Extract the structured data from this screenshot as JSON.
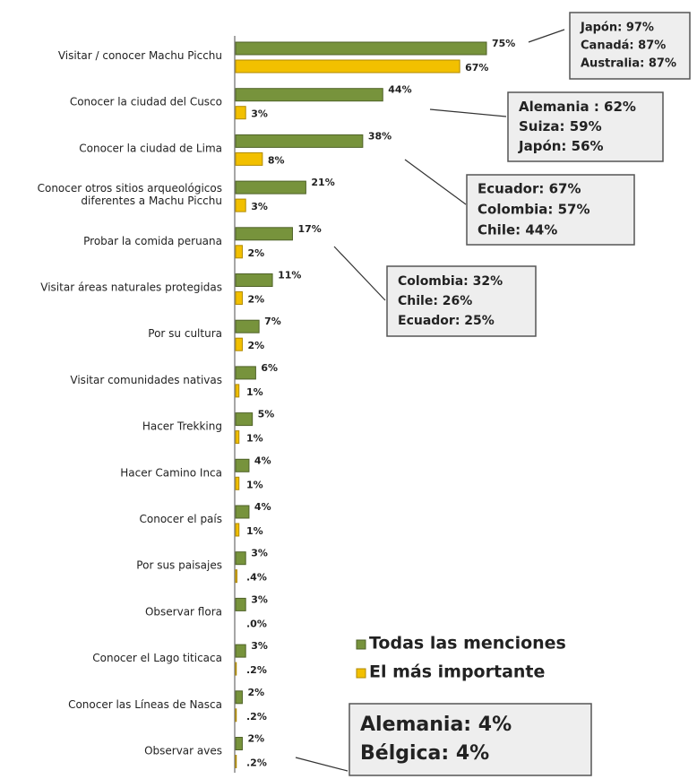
{
  "chart_data": {
    "type": "bar",
    "orientation": "horizontal",
    "categories": [
      "Visitar / conocer Machu Picchu",
      "Conocer la ciudad del Cusco",
      "Conocer la ciudad de Lima",
      "Conocer otros sitios arqueológicos|diferentes a Machu Picchu",
      "Probar la comida peruana",
      "Visitar áreas naturales protegidas",
      "Por su cultura",
      "Visitar comunidades nativas",
      "Hacer Trekking",
      "Hacer Camino Inca",
      "Conocer el país",
      "Por sus paisajes",
      "Observar flora",
      "Conocer el Lago titicaca",
      "Conocer las Líneas de Nasca",
      "Observar aves"
    ],
    "series": [
      {
        "name": "Todas las menciones",
        "color": "#77933c",
        "values": [
          75,
          44,
          38,
          21,
          17,
          11,
          7,
          6,
          5,
          4,
          4,
          3,
          3,
          3,
          2,
          2
        ],
        "value_labels": [
          "75%",
          "44%",
          "38%",
          "21%",
          "17%",
          "11%",
          "7%",
          "6%",
          "5%",
          "4%",
          "4%",
          "3%",
          "3%",
          "3%",
          "2%",
          "2%"
        ]
      },
      {
        "name": "El más importante",
        "color": "#f2c000",
        "values": [
          67,
          3,
          8,
          3,
          2,
          2,
          2,
          1,
          1,
          1,
          1,
          0.4,
          0.0,
          0.2,
          0.2,
          0.2
        ],
        "value_labels": [
          "67%",
          "3%",
          "8%",
          "3%",
          "2%",
          "2%",
          "2%",
          "1%",
          "1%",
          "1%",
          "1%",
          ".4%",
          ".0%",
          ".2%",
          ".2%",
          ".2%"
        ]
      }
    ],
    "legend": "lower-right",
    "annotations": [
      {
        "lines": [
          "Japón: 97%",
          "Canadá: 87%",
          "Australia: 87%"
        ]
      },
      {
        "lines": [
          "Alemania : 62%",
          "Suiza: 59%",
          "Japón: 56%"
        ]
      },
      {
        "lines": [
          "Ecuador: 67%",
          "Colombia: 57%",
          "Chile: 44%"
        ]
      },
      {
        "lines": [
          "Colombia: 32%",
          "Chile: 26%",
          "Ecuador: 25%"
        ]
      },
      {
        "lines": [
          "Alemania: 4%",
          "Bélgica: 4%"
        ]
      }
    ]
  }
}
